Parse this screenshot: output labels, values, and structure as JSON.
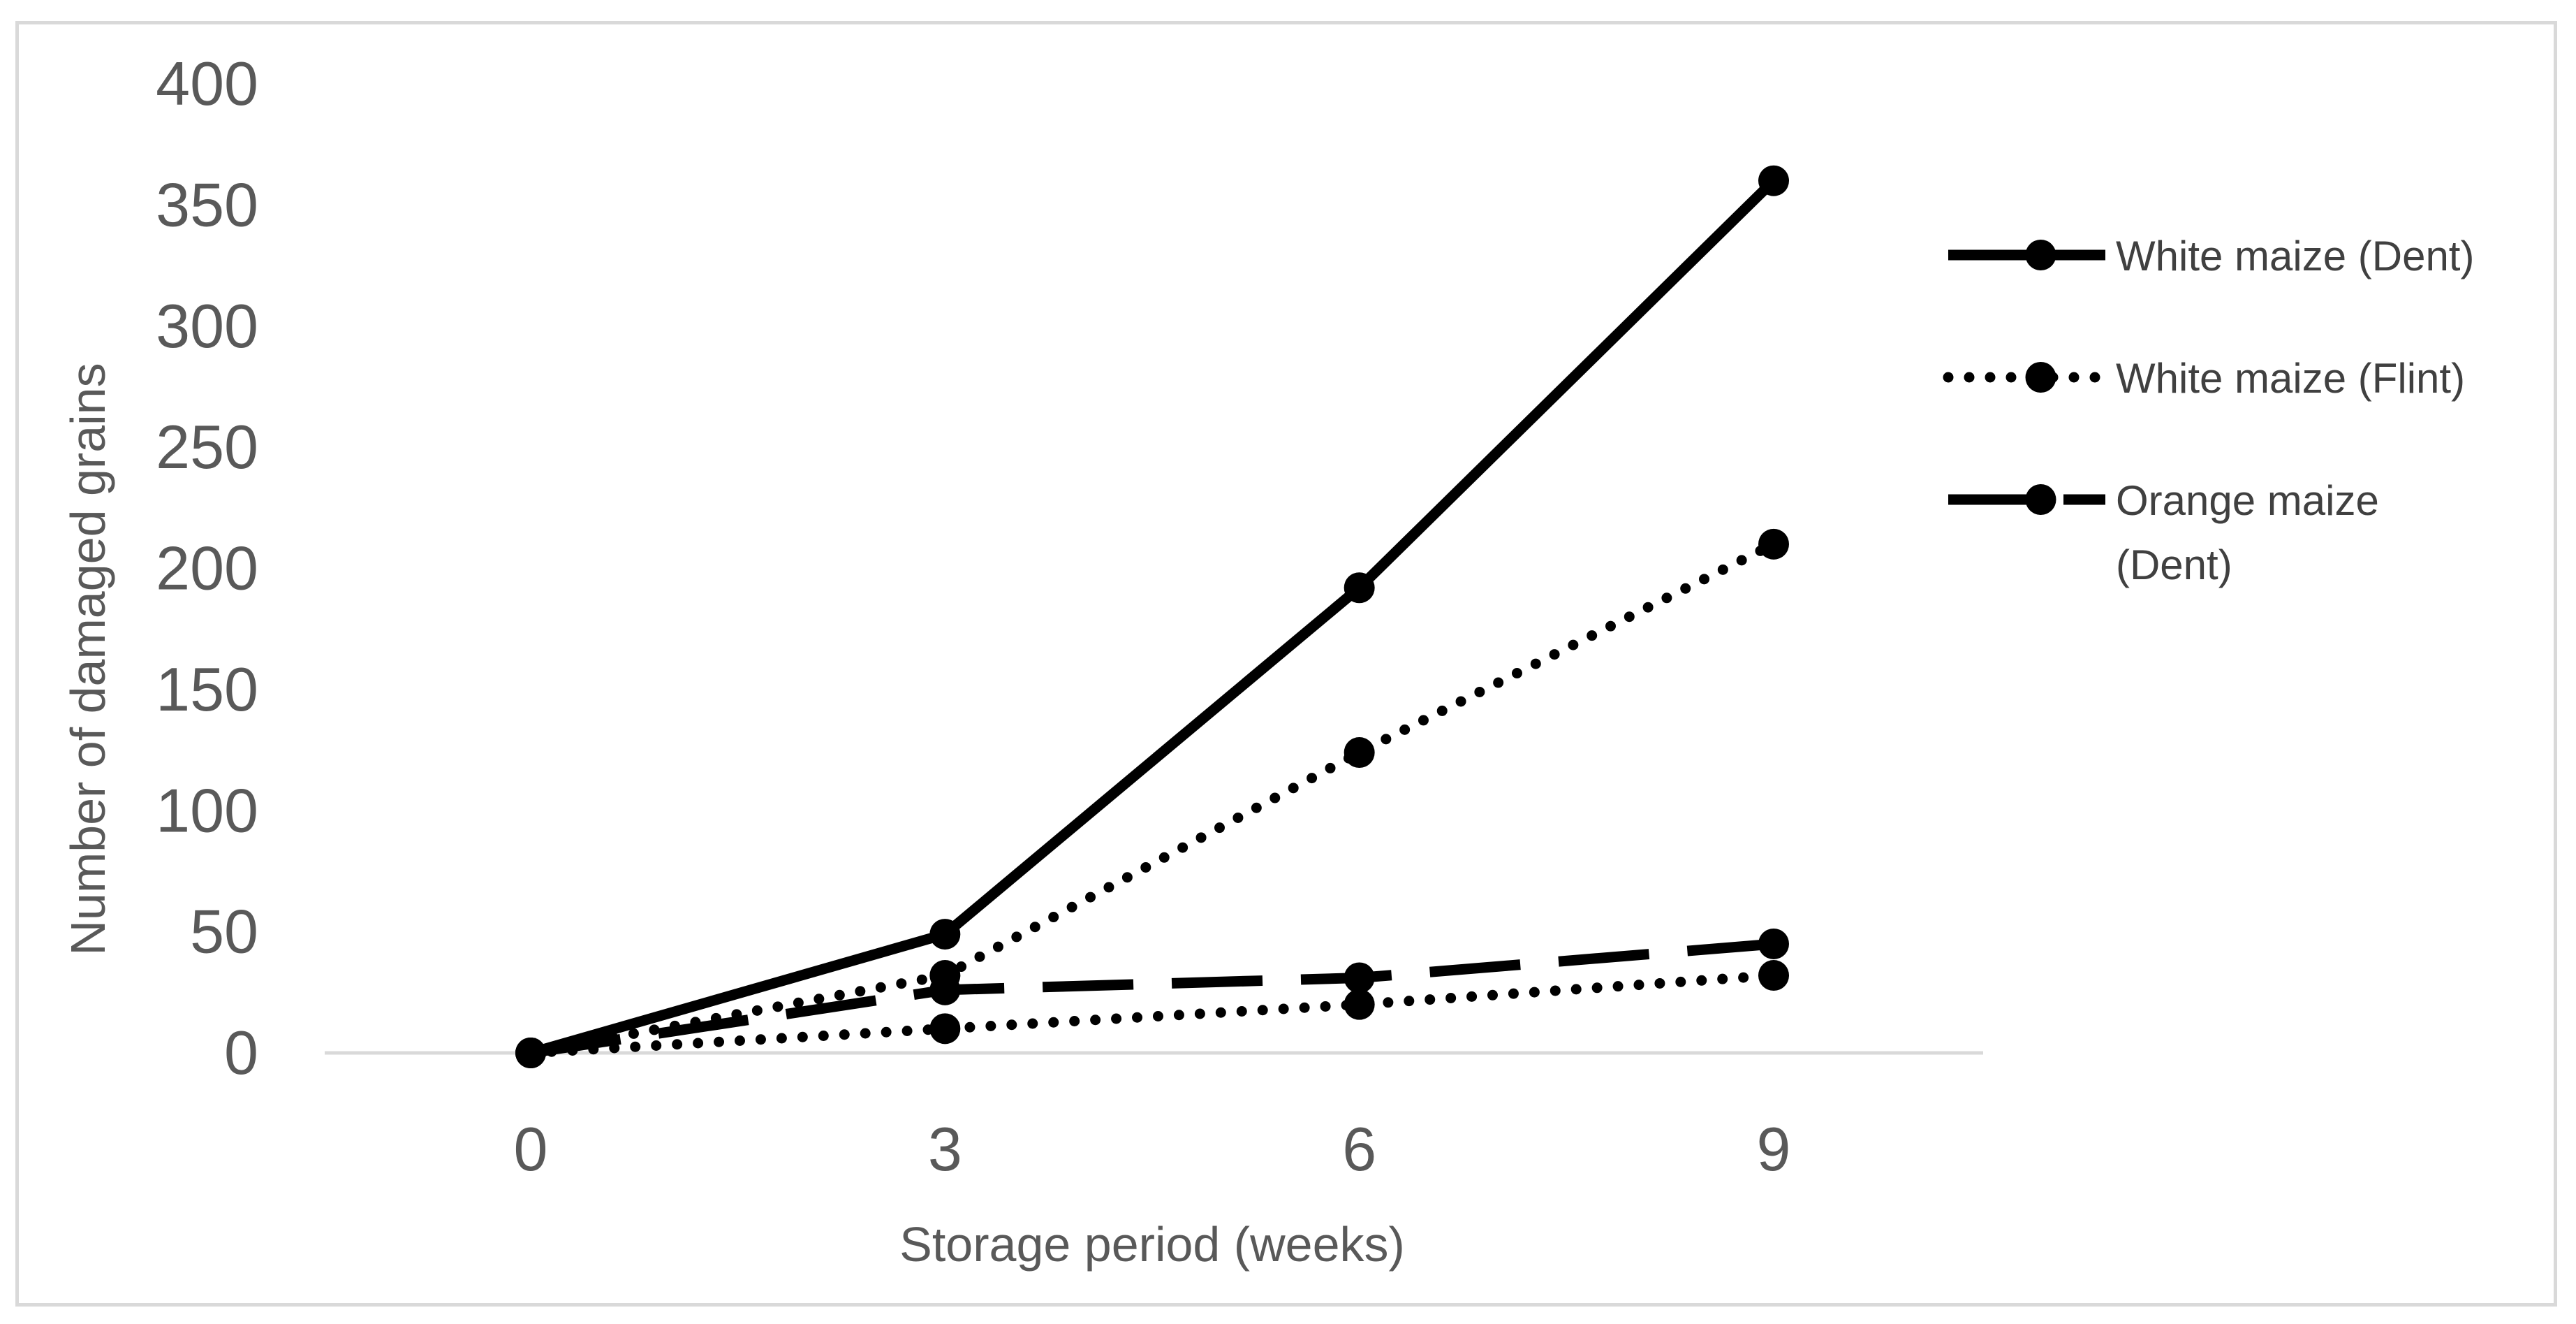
{
  "chart_data": {
    "type": "line",
    "title": "",
    "xlabel": "Storage period (weeks)",
    "ylabel": "Number of damaged grains",
    "x": [
      0,
      3,
      6,
      9
    ],
    "ylim": [
      0,
      400
    ],
    "yticks": [
      0,
      50,
      100,
      150,
      200,
      250,
      300,
      350,
      400
    ],
    "grid": false,
    "legend_position": "right",
    "series": [
      {
        "name": "White maize (Dent)",
        "legend_lines": [
          "White maize (Dent)"
        ],
        "style": "solid",
        "color": "#000000",
        "values": [
          0,
          49,
          192,
          360
        ]
      },
      {
        "name": "White maize (Flint)",
        "legend_lines": [
          "White maize (Flint)"
        ],
        "style": "dotted",
        "color": "#000000",
        "values": [
          0,
          10,
          20,
          32
        ]
      },
      {
        "name": "Orange maize (Dent)",
        "legend_lines": [
          "Orange maize",
          "(Dent)"
        ],
        "style": "dashed",
        "color": "#000000",
        "values": [
          0,
          26,
          31,
          45
        ]
      }
    ],
    "extra_points": [
      {
        "style": "dotted",
        "note_values": [
          [
            3,
            32
          ],
          [
            6,
            124
          ],
          [
            9,
            210
          ]
        ]
      }
    ]
  }
}
